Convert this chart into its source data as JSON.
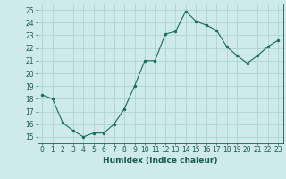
{
  "x": [
    0,
    1,
    2,
    3,
    4,
    5,
    6,
    7,
    8,
    9,
    10,
    11,
    12,
    13,
    14,
    15,
    16,
    17,
    18,
    19,
    20,
    21,
    22,
    23
  ],
  "y": [
    18.3,
    18.0,
    16.1,
    15.5,
    15.0,
    15.3,
    15.3,
    16.0,
    17.2,
    19.0,
    21.0,
    21.0,
    23.1,
    23.3,
    24.9,
    24.1,
    23.8,
    23.4,
    22.1,
    21.4,
    20.8,
    21.4,
    22.1,
    22.6
  ],
  "line_color": "#1a6b5a",
  "marker": "o",
  "marker_size": 2.0,
  "bg_color": "#ceeaea",
  "grid_color": "#aed4d4",
  "axis_color": "#1a5c4a",
  "xlabel": "Humidex (Indice chaleur)",
  "ylabel": "",
  "title": "",
  "xlim": [
    -0.5,
    23.5
  ],
  "ylim": [
    14.5,
    25.5
  ],
  "yticks": [
    15,
    16,
    17,
    18,
    19,
    20,
    21,
    22,
    23,
    24,
    25
  ],
  "xticks": [
    0,
    1,
    2,
    3,
    4,
    5,
    6,
    7,
    8,
    9,
    10,
    11,
    12,
    13,
    14,
    15,
    16,
    17,
    18,
    19,
    20,
    21,
    22,
    23
  ],
  "tick_fontsize": 5.5,
  "label_fontsize": 6.5
}
